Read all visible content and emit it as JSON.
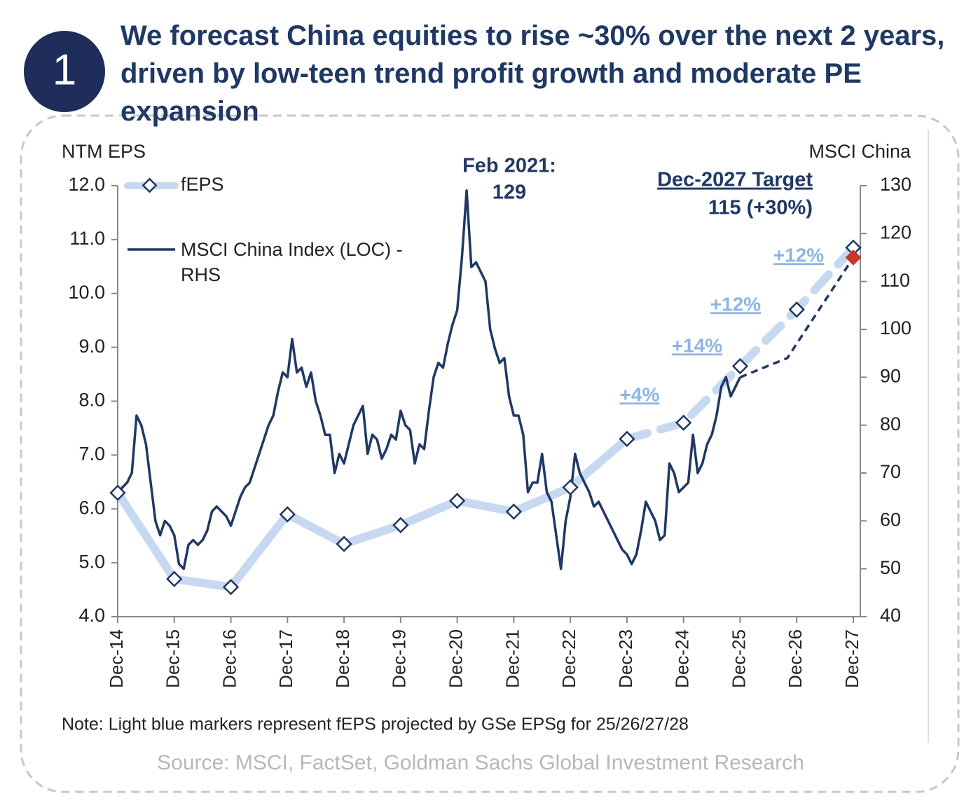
{
  "chart_data": {
    "type": "line",
    "badge": "1",
    "title": "We forecast China equities to rise ~30% over the next 2 years, driven by low-teen trend profit growth and moderate PE expansion",
    "y_axis_title": "NTM EPS",
    "y2_axis_title": "MSCI China",
    "categories": [
      "Dec-14",
      "Dec-15",
      "Dec-16",
      "Dec-17",
      "Dec-18",
      "Dec-19",
      "Dec-20",
      "Dec-21",
      "Dec-22",
      "Dec-23",
      "Dec-24",
      "Dec-25",
      "Dec-26",
      "Dec-27"
    ],
    "ylim": [
      4,
      12
    ],
    "yticks": [
      {
        "value": 4,
        "label": "4.0"
      },
      {
        "value": 5,
        "label": "5.0"
      },
      {
        "value": 6,
        "label": "6.0"
      },
      {
        "value": 7,
        "label": "7.0"
      },
      {
        "value": 8,
        "label": "8.0"
      },
      {
        "value": 9,
        "label": "9.0"
      },
      {
        "value": 10,
        "label": "10.0"
      },
      {
        "value": 11,
        "label": "11.0"
      },
      {
        "value": 12,
        "label": "12.0"
      }
    ],
    "y2lim": [
      40,
      130
    ],
    "y2ticks": [
      40,
      50,
      60,
      70,
      80,
      90,
      100,
      110,
      120,
      130
    ],
    "series": [
      {
        "name": "fEPS",
        "color": "#c6d9f1",
        "marker_edge": "#1f3864",
        "dashed_from": "Dec-23",
        "values": [
          6.3,
          4.7,
          4.55,
          5.9,
          5.35,
          5.7,
          6.15,
          5.95,
          6.4,
          7.3,
          7.6,
          8.65,
          9.7,
          10.85
        ]
      },
      {
        "name": "MSCI China Index (LOC) - RHS",
        "color": "#1f3864",
        "axis": "y2",
        "x": [
          "Dec-14",
          "Jan-15",
          "Feb-15",
          "Mar-15",
          "Apr-15",
          "May-15",
          "Jun-15",
          "Jul-15",
          "Aug-15",
          "Sep-15",
          "Oct-15",
          "Nov-15",
          "Dec-15",
          "Jan-16",
          "Feb-16",
          "Mar-16",
          "Apr-16",
          "May-16",
          "Jun-16",
          "Jul-16",
          "Aug-16",
          "Sep-16",
          "Oct-16",
          "Nov-16",
          "Dec-16",
          "Jan-17",
          "Feb-17",
          "Mar-17",
          "Apr-17",
          "May-17",
          "Jun-17",
          "Jul-17",
          "Aug-17",
          "Sep-17",
          "Oct-17",
          "Nov-17",
          "Dec-17",
          "Jan-18",
          "Feb-18",
          "Mar-18",
          "Apr-18",
          "May-18",
          "Jun-18",
          "Jul-18",
          "Aug-18",
          "Sep-18",
          "Oct-18",
          "Nov-18",
          "Dec-18",
          "Jan-19",
          "Feb-19",
          "Mar-19",
          "Apr-19",
          "May-19",
          "Jun-19",
          "Jul-19",
          "Aug-19",
          "Sep-19",
          "Oct-19",
          "Nov-19",
          "Dec-19",
          "Jan-20",
          "Feb-20",
          "Mar-20",
          "Apr-20",
          "May-20",
          "Jun-20",
          "Jul-20",
          "Aug-20",
          "Sep-20",
          "Oct-20",
          "Nov-20",
          "Dec-20",
          "Jan-21",
          "Feb-21",
          "Mar-21",
          "Apr-21",
          "May-21",
          "Jun-21",
          "Jul-21",
          "Aug-21",
          "Sep-21",
          "Oct-21",
          "Nov-21",
          "Dec-21",
          "Jan-22",
          "Feb-22",
          "Mar-22",
          "Apr-22",
          "May-22",
          "Jun-22",
          "Jul-22",
          "Aug-22",
          "Sep-22",
          "Oct-22",
          "Nov-22",
          "Dec-22",
          "Jan-23",
          "Feb-23",
          "Mar-23",
          "Apr-23",
          "May-23",
          "Jun-23",
          "Jul-23",
          "Aug-23",
          "Sep-23",
          "Oct-23",
          "Nov-23",
          "Dec-23",
          "Jan-24",
          "Feb-24",
          "Mar-24",
          "Apr-24",
          "May-24",
          "Jun-24",
          "Jul-24",
          "Aug-24",
          "Sep-24",
          "Oct-24",
          "Nov-24",
          "Dec-24",
          "Jan-25",
          "Feb-25",
          "Mar-25",
          "Apr-25",
          "May-25",
          "Jun-25",
          "Jul-25",
          "Aug-25",
          "Sep-25",
          "Oct-25",
          "Nov-25",
          "Dec-25"
        ],
        "values": [
          65,
          67,
          68,
          70,
          82,
          80,
          76,
          68,
          60,
          57,
          60,
          59,
          57,
          51,
          50,
          55,
          56,
          55,
          56,
          58,
          62,
          63,
          62,
          61,
          59,
          62,
          65,
          67,
          68,
          71,
          74,
          77,
          80,
          82,
          87,
          91,
          90,
          98,
          91,
          92,
          88,
          91,
          85,
          82,
          78,
          78,
          70,
          74,
          72,
          76,
          80,
          82,
          84,
          74,
          78,
          77,
          73,
          75,
          78,
          77,
          83,
          80,
          79,
          72,
          76,
          75,
          83,
          90,
          93,
          92,
          97,
          101,
          104,
          115,
          129,
          113,
          114,
          112,
          110,
          100,
          96,
          93,
          94,
          86,
          82,
          82,
          78,
          66,
          68,
          68,
          74,
          66,
          64,
          57,
          50,
          60,
          65,
          74,
          70,
          68,
          66,
          63,
          64,
          62,
          60,
          58,
          56,
          54,
          53,
          51,
          53,
          58,
          64,
          62,
          60,
          56,
          57,
          72,
          70,
          66,
          67,
          68,
          78,
          70,
          72,
          76,
          78,
          82,
          88,
          90,
          86,
          88,
          90
        ],
        "projection": {
          "x": [
            "Dec-25",
            "Oct-26",
            "Dec-27"
          ],
          "values": [
            90,
            94,
            115
          ]
        },
        "target": {
          "x": "Dec-27",
          "value": 115,
          "color": "#c0392b"
        }
      }
    ],
    "peak_annotation": {
      "label": "Feb 2021:",
      "text": "129"
    },
    "target_annotation": {
      "label": "Dec-2027 Target",
      "text": "115 (+30%)"
    },
    "growth_labels": [
      "+4%",
      "+14%",
      "+12%",
      "+12%"
    ],
    "note": "Note: Light blue markers represent fEPS projected by GSe EPSg for 25/26/27/28",
    "source": "Source: MSCI, FactSet, Goldman Sachs Global Investment Research"
  }
}
